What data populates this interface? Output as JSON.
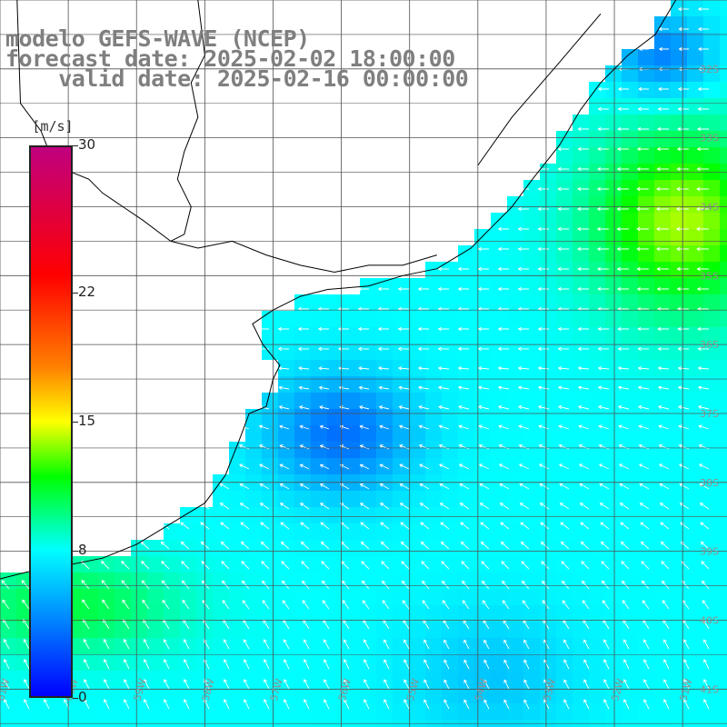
{
  "title": {
    "line1": "modelo GEFS-WAVE (NCEP)",
    "line2": "forecast date: 2025-02-02 18:00:00",
    "line3": "    valid date: 2025-02-16 00:00:00"
  },
  "legend": {
    "unit": "[m/s]",
    "colormap": [
      {
        "value": 0,
        "color": "#0000ff"
      },
      {
        "value": 4,
        "color": "#0080ff"
      },
      {
        "value": 8,
        "color": "#00ffff"
      },
      {
        "value": 12,
        "color": "#00ff00"
      },
      {
        "value": 15,
        "color": "#ffff00"
      },
      {
        "value": 18,
        "color": "#ff8000"
      },
      {
        "value": 23,
        "color": "#ff0000"
      },
      {
        "value": 30,
        "color": "#c0007f"
      }
    ],
    "ticks": [
      {
        "value": 30,
        "label": "30"
      },
      {
        "value": 22,
        "label": "22"
      },
      {
        "value": 15,
        "label": "15"
      },
      {
        "value": 8,
        "label": "8"
      },
      {
        "value": 0,
        "label": "0"
      }
    ]
  },
  "map": {
    "lon_range": [
      -61,
      -50.35
    ],
    "lat_range": [
      -31.0,
      -41.55
    ],
    "grid_step_deg": 1,
    "lat_labels": [
      "32S",
      "33S",
      "34S",
      "35S",
      "36S",
      "37S",
      "38S",
      "39S",
      "40S",
      "41S"
    ],
    "lon_labels": [
      "61W",
      "60W",
      "59W",
      "58W",
      "57W",
      "56W",
      "55W",
      "54W",
      "53W",
      "52W",
      "51W"
    ],
    "colors": {
      "coastline": "#000000",
      "grid": "#505050",
      "vector": "#ffffff",
      "label": "#909090"
    }
  }
}
